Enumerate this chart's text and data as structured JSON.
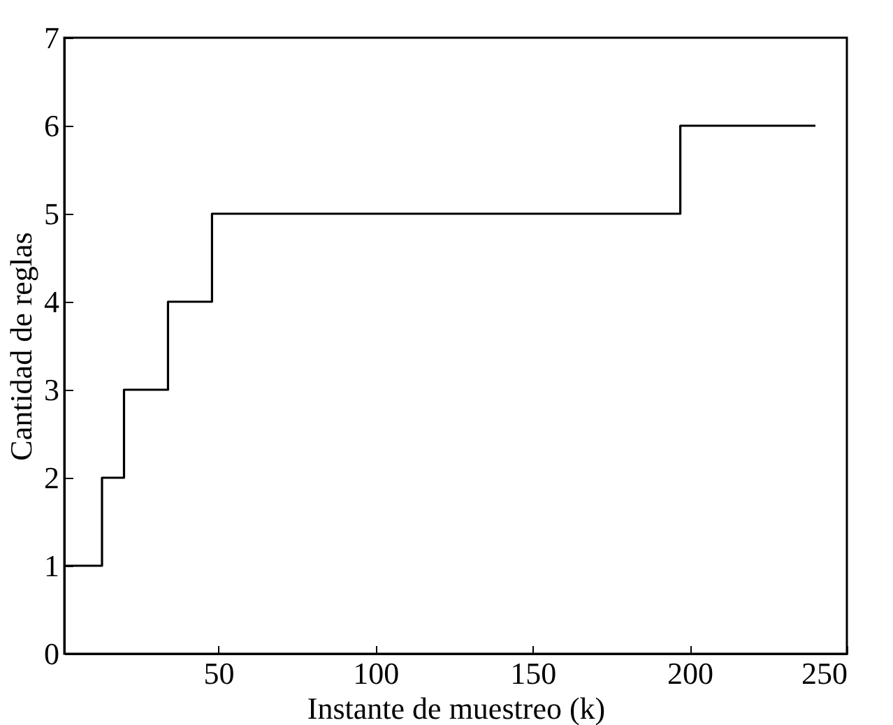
{
  "chart_data": {
    "type": "step",
    "xlabel": "Instante de muestreo (k)",
    "ylabel": "Cantidad de reglas",
    "x": [
      1,
      13,
      20,
      34,
      48,
      197,
      240
    ],
    "series": [
      {
        "color": "#000000",
        "values": [
          1,
          2,
          3,
          4,
          5,
          6,
          6
        ]
      }
    ],
    "xlim": [
      1,
      250
    ],
    "xticks": [
      50,
      100,
      150,
      200,
      250
    ],
    "ylim": [
      0,
      7
    ],
    "yticks": [
      0,
      1,
      2,
      3,
      4,
      5,
      6,
      7
    ],
    "grid": false
  }
}
